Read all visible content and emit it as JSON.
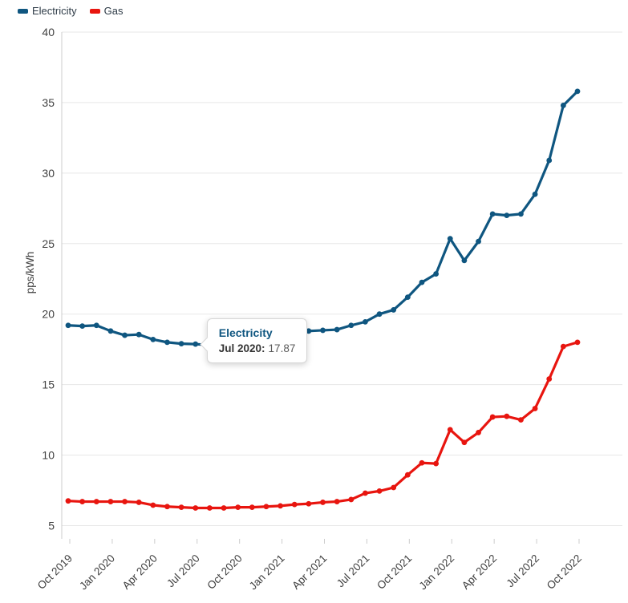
{
  "chart_data": {
    "type": "line",
    "title": "",
    "ylabel": "pps/kWh",
    "xlabel": "",
    "ylim": [
      5,
      40
    ],
    "yticks": [
      40,
      35,
      30,
      25,
      20,
      15,
      10,
      5
    ],
    "grid": "horizontal",
    "legend_position": "top-left",
    "x_tick_step": 3,
    "x": [
      "Oct 2019",
      "Nov 2019",
      "Dec 2019",
      "Jan 2020",
      "Feb 2020",
      "Mar 2020",
      "Apr 2020",
      "May 2020",
      "Jun 2020",
      "Jul 2020",
      "Aug 2020",
      "Sep 2020",
      "Oct 2020",
      "Nov 2020",
      "Dec 2020",
      "Jan 2021",
      "Feb 2021",
      "Mar 2021",
      "Apr 2021",
      "May 2021",
      "Jun 2021",
      "Jul 2021",
      "Aug 2021",
      "Sep 2021",
      "Oct 2021",
      "Nov 2021",
      "Dec 2021",
      "Jan 2022",
      "Feb 2022",
      "Mar 2022",
      "Apr 2022",
      "May 2022",
      "Jun 2022",
      "Jul 2022",
      "Aug 2022",
      "Sep 2022",
      "Oct 2022"
    ],
    "visible_x_tick_labels": [
      "Oct 2019",
      "Jan 2020",
      "Apr 2020",
      "Jul 2020",
      "Oct 2020",
      "Jan 2021",
      "Apr 2021",
      "Jul 2021",
      "Oct 2021",
      "Jan 2022",
      "Apr 2022",
      "Jul 2022",
      "Oct 2022"
    ],
    "series": [
      {
        "name": "Electricity",
        "color": "#0f5680",
        "values": [
          19.2,
          19.15,
          19.2,
          18.8,
          18.5,
          18.55,
          18.2,
          18.0,
          17.9,
          17.87,
          17.8,
          17.8,
          17.85,
          18.0,
          18.2,
          18.45,
          18.65,
          18.8,
          18.85,
          18.9,
          19.2,
          19.45,
          20.0,
          20.3,
          21.2,
          22.25,
          22.85,
          25.35,
          23.8,
          25.15,
          27.1,
          27.0,
          27.1,
          28.5,
          30.9,
          34.8,
          35.8
        ]
      },
      {
        "name": "Gas",
        "color": "#e8150f",
        "values": [
          6.75,
          6.7,
          6.7,
          6.7,
          6.7,
          6.65,
          6.45,
          6.35,
          6.3,
          6.25,
          6.25,
          6.25,
          6.3,
          6.3,
          6.35,
          6.4,
          6.5,
          6.55,
          6.65,
          6.7,
          6.85,
          7.3,
          7.45,
          7.7,
          8.6,
          9.45,
          9.4,
          11.8,
          10.9,
          11.6,
          12.7,
          12.75,
          12.5,
          13.3,
          15.4,
          17.7,
          18.0
        ]
      }
    ]
  },
  "tooltip": {
    "series": "Electricity",
    "x_label": "Jul 2020:",
    "value": "17.87",
    "month_index": 9,
    "series_index": 0
  },
  "colors": {
    "grid": "#e7e7e7",
    "axis": "#cccccc",
    "tick_text": "#404040",
    "legend_text": "#2e3b47",
    "tooltip_value": "#5a5a5a"
  }
}
